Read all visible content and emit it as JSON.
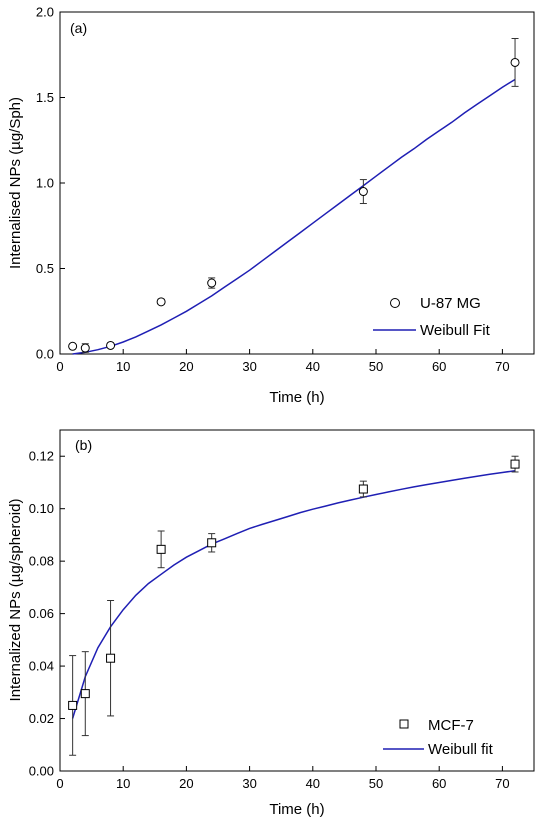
{
  "chart_data": [
    {
      "type": "scatter",
      "panel_label": "(a)",
      "xlabel": "Time (h)",
      "ylabel": "Internalised NPs (µg/Sph)",
      "xlim": [
        0,
        75
      ],
      "ylim": [
        0,
        2.0
      ],
      "xticks": [
        0,
        10,
        20,
        30,
        40,
        50,
        60,
        70
      ],
      "yticks": [
        0.0,
        0.5,
        1.0,
        1.5,
        2.0
      ],
      "ytick_labels": [
        "0.0",
        "0.5",
        "1.0",
        "1.5",
        "2.0"
      ],
      "legend_position": "bottom-right",
      "marker": "circle",
      "series": [
        {
          "name": "U-87 MG",
          "kind": "points",
          "x": [
            2,
            4,
            8,
            16,
            24,
            48,
            72
          ],
          "y": [
            0.045,
            0.035,
            0.05,
            0.305,
            0.415,
            0.95,
            1.705
          ],
          "error": [
            0.01,
            0.025,
            0.01,
            0.015,
            0.03,
            0.07,
            0.14
          ]
        },
        {
          "name": "Weibull Fit",
          "kind": "line",
          "color": "#1f1fb4",
          "x": [
            2,
            4,
            6,
            8,
            10,
            12,
            14,
            16,
            18,
            20,
            22,
            24,
            26,
            28,
            30,
            32,
            34,
            36,
            38,
            40,
            42,
            44,
            46,
            48,
            50,
            52,
            54,
            56,
            58,
            60,
            62,
            64,
            66,
            68,
            70,
            72
          ],
          "y": [
            0.0,
            0.01,
            0.025,
            0.045,
            0.07,
            0.1,
            0.135,
            0.17,
            0.21,
            0.25,
            0.295,
            0.34,
            0.39,
            0.44,
            0.49,
            0.545,
            0.6,
            0.655,
            0.71,
            0.765,
            0.82,
            0.875,
            0.93,
            0.985,
            1.04,
            1.095,
            1.15,
            1.2,
            1.255,
            1.305,
            1.355,
            1.41,
            1.46,
            1.51,
            1.56,
            1.605
          ]
        }
      ]
    },
    {
      "type": "scatter",
      "panel_label": "(b)",
      "xlabel": "Time (h)",
      "ylabel": "Internalized NPs (µg/spheroid)",
      "xlim": [
        0,
        75
      ],
      "ylim": [
        0,
        0.13
      ],
      "xticks": [
        0,
        10,
        20,
        30,
        40,
        50,
        60,
        70
      ],
      "yticks": [
        0.0,
        0.02,
        0.04,
        0.06,
        0.08,
        0.1,
        0.12
      ],
      "ytick_labels": [
        "0.00",
        "0.02",
        "0.04",
        "0.06",
        "0.08",
        "0.10",
        "0.12"
      ],
      "legend_position": "bottom-right",
      "marker": "square",
      "series": [
        {
          "name": "MCF-7",
          "kind": "points",
          "x": [
            2,
            4,
            8,
            16,
            24,
            48,
            72
          ],
          "y": [
            0.025,
            0.0295,
            0.043,
            0.0845,
            0.087,
            0.1075,
            0.117
          ],
          "error": [
            0.019,
            0.016,
            0.022,
            0.007,
            0.0035,
            0.003,
            0.003
          ]
        },
        {
          "name": "Weibull fit",
          "kind": "line",
          "color": "#1f1fb4",
          "x": [
            2,
            4,
            6,
            8,
            10,
            12,
            14,
            16,
            18,
            20,
            22,
            24,
            26,
            28,
            30,
            32,
            34,
            36,
            38,
            40,
            42,
            44,
            46,
            48,
            50,
            52,
            54,
            56,
            58,
            60,
            62,
            64,
            66,
            68,
            70,
            72
          ],
          "y": [
            0.02,
            0.036,
            0.047,
            0.055,
            0.0615,
            0.067,
            0.0715,
            0.075,
            0.0785,
            0.0815,
            0.084,
            0.0865,
            0.0885,
            0.0905,
            0.0925,
            0.094,
            0.0955,
            0.097,
            0.0985,
            0.0998,
            0.101,
            0.1022,
            0.1033,
            0.1044,
            0.1054,
            0.1064,
            0.1074,
            0.1083,
            0.1092,
            0.11,
            0.1108,
            0.1116,
            0.1124,
            0.1131,
            0.1138,
            0.1145
          ]
        }
      ]
    }
  ]
}
